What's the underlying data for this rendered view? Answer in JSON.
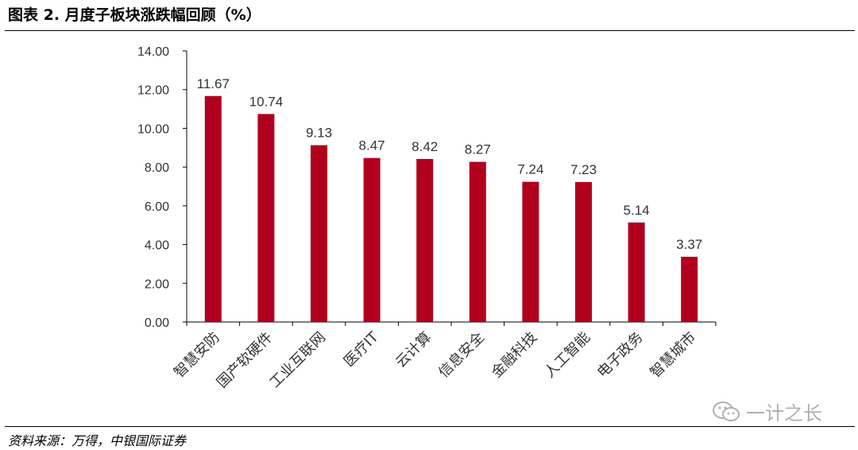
{
  "figure": {
    "title": "图表 2. 月度子板块涨跌幅回顾（%）",
    "source": "资料来源：万得，中银国际证券",
    "watermark": "一计之长",
    "watermark_icon": "wechat-icon"
  },
  "colors": {
    "bar": "#b0001e",
    "axis": "#000000",
    "text": "#333333"
  },
  "chart_data": {
    "type": "bar",
    "title": "",
    "xlabel": "",
    "ylabel": "",
    "categories": [
      "智慧安防",
      "国产软硬件",
      "工业互联网",
      "医疗IT",
      "云计算",
      "信息安全",
      "金融科技",
      "人工智能",
      "电子政务",
      "智慧城市"
    ],
    "values": [
      11.67,
      10.74,
      9.13,
      8.47,
      8.42,
      8.27,
      7.24,
      7.23,
      5.14,
      3.37
    ],
    "value_labels": [
      "11.67",
      "10.74",
      "9.13",
      "8.47",
      "8.42",
      "8.27",
      "7.24",
      "7.23",
      "5.14",
      "3.37"
    ],
    "ylim": [
      0,
      14
    ],
    "yticks": [
      0,
      2,
      4,
      6,
      8,
      10,
      12,
      14
    ],
    "ytick_labels": [
      "0.00",
      "2.00",
      "4.00",
      "6.00",
      "8.00",
      "10.00",
      "12.00",
      "14.00"
    ],
    "grid": false,
    "legend": "none"
  }
}
